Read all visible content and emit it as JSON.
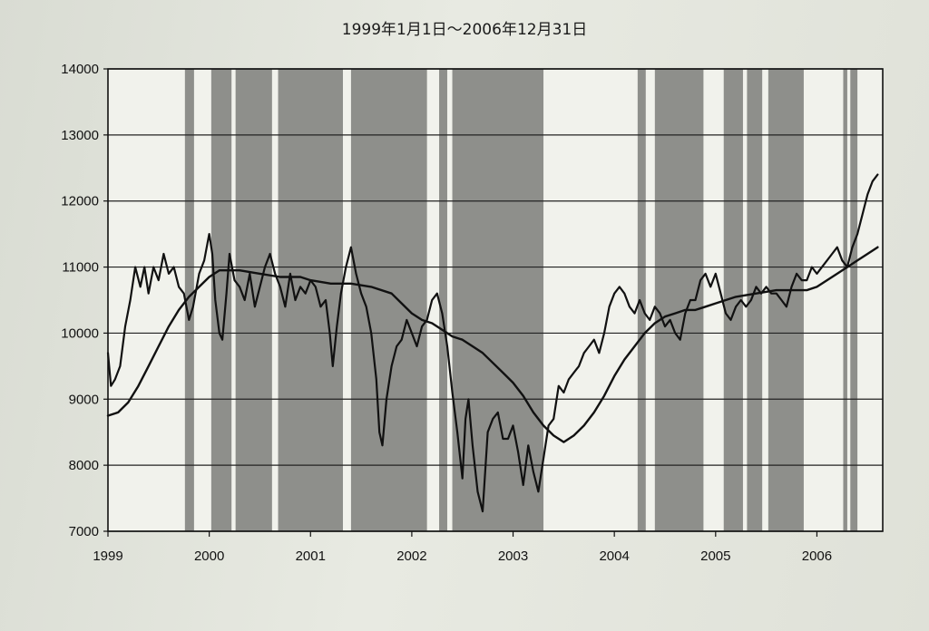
{
  "chart_data": {
    "type": "line",
    "title": "1999年1月1日～2006年12月31日",
    "xlabel": "",
    "ylabel": "",
    "xlim": [
      1999.0,
      2006.65
    ],
    "ylim": [
      7000,
      14000
    ],
    "y_ticks": [
      "7000",
      "8000",
      "9000",
      "10000",
      "11000",
      "12000",
      "13000",
      "14000"
    ],
    "x_ticks": [
      "1999",
      "2000",
      "2001",
      "2002",
      "2003",
      "2004",
      "2005",
      "2006"
    ],
    "grid": "horizontal",
    "shaded_periods": [
      [
        1999.76,
        1999.85
      ],
      [
        2000.02,
        2000.22
      ],
      [
        2000.26,
        2000.62
      ],
      [
        2000.68,
        2001.32
      ],
      [
        2001.4,
        2002.15
      ],
      [
        2002.27,
        2002.35
      ],
      [
        2002.4,
        2003.3
      ],
      [
        2004.23,
        2004.31
      ],
      [
        2004.4,
        2004.88
      ],
      [
        2005.08,
        2005.27
      ],
      [
        2005.31,
        2005.46
      ],
      [
        2005.52,
        2005.87
      ],
      [
        2006.26,
        2006.3
      ],
      [
        2006.33,
        2006.4
      ]
    ],
    "series": [
      {
        "style": "index",
        "x": [
          1999.0,
          1999.03,
          1999.07,
          1999.12,
          1999.17,
          1999.22,
          1999.27,
          1999.32,
          1999.36,
          1999.4,
          1999.45,
          1999.5,
          1999.55,
          1999.6,
          1999.65,
          1999.7,
          1999.75,
          1999.8,
          1999.84,
          1999.9,
          1999.95,
          2000.0,
          2000.03,
          2000.06,
          2000.1,
          2000.13,
          2000.17,
          2000.2,
          2000.25,
          2000.3,
          2000.35,
          2000.4,
          2000.45,
          2000.5,
          2000.55,
          2000.6,
          2000.65,
          2000.7,
          2000.75,
          2000.8,
          2000.85,
          2000.9,
          2000.95,
          2001.0,
          2001.05,
          2001.1,
          2001.15,
          2001.19,
          2001.22,
          2001.26,
          2001.3,
          2001.35,
          2001.4,
          2001.45,
          2001.5,
          2001.55,
          2001.6,
          2001.65,
          2001.68,
          2001.71,
          2001.75,
          2001.8,
          2001.85,
          2001.9,
          2001.95,
          2002.0,
          2002.05,
          2002.1,
          2002.15,
          2002.2,
          2002.25,
          2002.3,
          2002.35,
          2002.4,
          2002.45,
          2002.5,
          2002.53,
          2002.56,
          2002.6,
          2002.65,
          2002.7,
          2002.75,
          2002.8,
          2002.85,
          2002.9,
          2002.95,
          2003.0,
          2003.05,
          2003.1,
          2003.15,
          2003.2,
          2003.25,
          2003.3,
          2003.35,
          2003.4,
          2003.45,
          2003.5,
          2003.55,
          2003.6,
          2003.65,
          2003.7,
          2003.75,
          2003.8,
          2003.85,
          2003.9,
          2003.95,
          2004.0,
          2004.05,
          2004.1,
          2004.15,
          2004.2,
          2004.25,
          2004.3,
          2004.35,
          2004.4,
          2004.45,
          2004.5,
          2004.55,
          2004.6,
          2004.65,
          2004.7,
          2004.75,
          2004.8,
          2004.85,
          2004.9,
          2004.95,
          2005.0,
          2005.05,
          2005.1,
          2005.15,
          2005.2,
          2005.25,
          2005.3,
          2005.35,
          2005.4,
          2005.45,
          2005.5,
          2005.55,
          2005.6,
          2005.65,
          2005.7,
          2005.75,
          2005.8,
          2005.85,
          2005.9,
          2005.95,
          2006.0,
          2006.05,
          2006.1,
          2006.15,
          2006.2,
          2006.25,
          2006.3,
          2006.35,
          2006.4,
          2006.45,
          2006.5,
          2006.55,
          2006.6
        ],
        "values": [
          9700,
          9200,
          9300,
          9500,
          10100,
          10500,
          11000,
          10700,
          11000,
          10600,
          11000,
          10800,
          11200,
          10900,
          11000,
          10700,
          10600,
          10200,
          10400,
          10900,
          11100,
          11500,
          11200,
          10500,
          10000,
          9900,
          10600,
          11200,
          10800,
          10700,
          10500,
          10900,
          10400,
          10700,
          11000,
          11200,
          10900,
          10700,
          10400,
          10900,
          10500,
          10700,
          10600,
          10800,
          10700,
          10400,
          10500,
          10000,
          9500,
          10100,
          10600,
          11000,
          11300,
          10900,
          10600,
          10400,
          10000,
          9300,
          8500,
          8300,
          9000,
          9500,
          9800,
          9900,
          10200,
          10000,
          9800,
          10100,
          10200,
          10500,
          10600,
          10300,
          9800,
          9100,
          8500,
          7800,
          8700,
          9000,
          8300,
          7600,
          7300,
          8500,
          8700,
          8800,
          8400,
          8400,
          8600,
          8200,
          7700,
          8300,
          7900,
          7600,
          8100,
          8600,
          8700,
          9200,
          9100,
          9300,
          9400,
          9500,
          9700,
          9800,
          9900,
          9700,
          10000,
          10400,
          10600,
          10700,
          10600,
          10400,
          10300,
          10500,
          10300,
          10200,
          10400,
          10300,
          10100,
          10200,
          10000,
          9900,
          10300,
          10500,
          10500,
          10800,
          10900,
          10700,
          10900,
          10600,
          10300,
          10200,
          10400,
          10500,
          10400,
          10500,
          10700,
          10600,
          10700,
          10600,
          10600,
          10500,
          10400,
          10700,
          10900,
          10800,
          10800,
          11000,
          10900,
          11000,
          11100,
          11200,
          11300,
          11100,
          11000,
          11300,
          11500,
          11800,
          12100,
          12300,
          12400
        ]
      },
      {
        "style": "moving-average",
        "x": [
          1999.0,
          1999.1,
          1999.2,
          1999.3,
          1999.4,
          1999.5,
          1999.6,
          1999.7,
          1999.8,
          1999.9,
          2000.0,
          2000.1,
          2000.2,
          2000.3,
          2000.5,
          2000.7,
          2000.9,
          2001.0,
          2001.2,
          2001.4,
          2001.6,
          2001.8,
          2001.9,
          2002.0,
          2002.1,
          2002.2,
          2002.3,
          2002.4,
          2002.5,
          2002.6,
          2002.7,
          2002.8,
          2002.9,
          2003.0,
          2003.1,
          2003.2,
          2003.3,
          2003.4,
          2003.5,
          2003.6,
          2003.7,
          2003.8,
          2003.9,
          2004.0,
          2004.1,
          2004.2,
          2004.3,
          2004.4,
          2004.5,
          2004.6,
          2004.7,
          2004.8,
          2004.9,
          2005.0,
          2005.2,
          2005.4,
          2005.6,
          2005.8,
          2005.9,
          2006.0,
          2006.1,
          2006.2,
          2006.3,
          2006.4,
          2006.5,
          2006.6
        ],
        "values": [
          8750,
          8800,
          8950,
          9200,
          9500,
          9800,
          10100,
          10350,
          10550,
          10700,
          10850,
          10950,
          10950,
          10950,
          10900,
          10850,
          10850,
          10800,
          10750,
          10750,
          10700,
          10600,
          10450,
          10300,
          10200,
          10150,
          10050,
          9950,
          9900,
          9800,
          9700,
          9550,
          9400,
          9250,
          9050,
          8800,
          8600,
          8450,
          8350,
          8450,
          8600,
          8800,
          9050,
          9350,
          9600,
          9800,
          10000,
          10150,
          10250,
          10300,
          10350,
          10350,
          10400,
          10450,
          10550,
          10600,
          10650,
          10650,
          10650,
          10700,
          10800,
          10900,
          11000,
          11100,
          11200,
          11300
        ]
      }
    ]
  }
}
